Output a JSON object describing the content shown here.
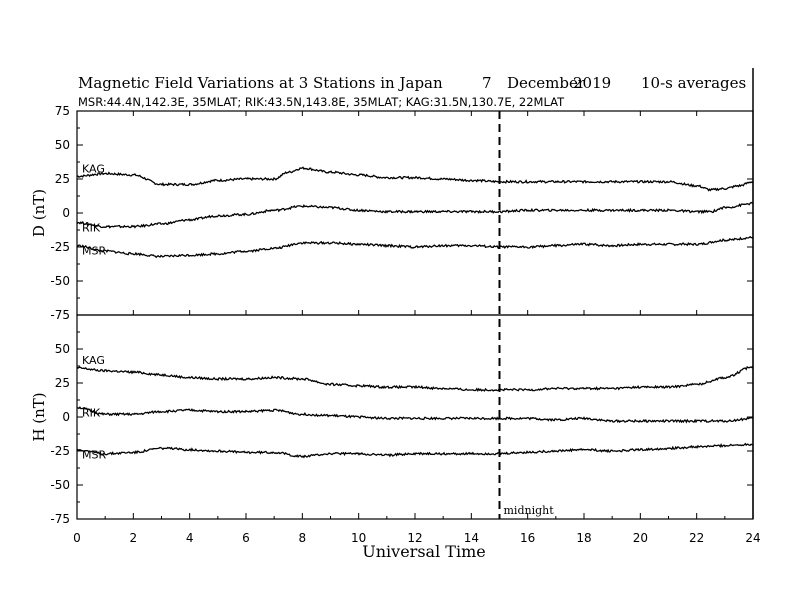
{
  "chart_data": {
    "type": "line",
    "title": "Magnetic Field Variations at 3 Stations in Japan",
    "date_day": "7",
    "date_month": "December",
    "date_year": "2019",
    "averaging": "10-s averages",
    "station_info": "MSR:44.4N,142.3E, 35MLAT;  RIK:43.5N,143.8E, 35MLAT;  KAG:31.5N,130.7E, 22MLAT",
    "xlabel": "Universal Time",
    "xlim": [
      0,
      24
    ],
    "xticks": [
      0,
      2,
      4,
      6,
      8,
      10,
      12,
      14,
      16,
      18,
      20,
      22,
      24
    ],
    "midnight_label": "midnight",
    "midnight_ut": 15,
    "panels": [
      {
        "ylabel": "D (nT)",
        "ylim": [
          -75,
          75
        ],
        "yticks": [
          75,
          50,
          25,
          0,
          -25,
          -50,
          -75
        ],
        "series": [
          {
            "name": "KAG",
            "x": [
              0,
              1,
              2,
              3,
              4,
              5,
              6,
              7,
              7.5,
              8,
              9,
              10,
              11,
              12,
              13,
              14,
              15,
              16,
              17,
              18,
              19,
              20,
              21,
              22,
              22.5,
              23,
              23.5,
              24
            ],
            "y": [
              27,
              29,
              28,
              21,
              21,
              24,
              25,
              25,
              30,
              33,
              30,
              28,
              26,
              26,
              25,
              24,
              23,
              23,
              23,
              23,
              23,
              23,
              23,
              20,
              17,
              18,
              20,
              23
            ]
          },
          {
            "name": "RIK",
            "x": [
              0,
              1,
              2,
              3,
              4,
              5,
              6,
              7,
              8,
              9,
              10,
              11,
              12,
              13,
              14,
              15,
              16,
              17,
              18,
              19,
              20,
              21,
              22,
              22.5,
              23,
              24
            ],
            "y": [
              -7,
              -10,
              -10,
              -8,
              -5,
              -2,
              -1,
              2,
              5,
              4,
              2,
              1,
              1,
              1,
              1,
              1,
              2,
              2,
              2,
              2,
              2,
              2,
              1,
              1,
              4,
              7
            ]
          },
          {
            "name": "MSR",
            "x": [
              0,
              1,
              2,
              3,
              4,
              5,
              6,
              7,
              8,
              9,
              10,
              11,
              12,
              13,
              14,
              15,
              16,
              17,
              18,
              19,
              20,
              21,
              22,
              23,
              24
            ],
            "y": [
              -24,
              -28,
              -30,
              -32,
              -31,
              -30,
              -28,
              -26,
              -22,
              -22,
              -23,
              -24,
              -25,
              -24,
              -24,
              -25,
              -25,
              -24,
              -23,
              -24,
              -23,
              -23,
              -23,
              -20,
              -18
            ]
          }
        ]
      },
      {
        "ylabel": "H (nT)",
        "ylim": [
          -75,
          75
        ],
        "yticks": [
          75,
          50,
          25,
          0,
          -25,
          -50,
          -75
        ],
        "series": [
          {
            "name": "KAG",
            "x": [
              0,
              1,
              2,
              3,
              4,
              5,
              6,
              7,
              8,
              9,
              10,
              11,
              12,
              13,
              14,
              15,
              16,
              17,
              18,
              19,
              20,
              21,
              22,
              23,
              24
            ],
            "y": [
              36,
              34,
              33,
              31,
              29,
              28,
              28,
              29,
              28,
              24,
              23,
              22,
              22,
              21,
              20,
              20,
              20,
              21,
              21,
              21,
              22,
              22,
              24,
              29,
              37
            ]
          },
          {
            "name": "RIK",
            "x": [
              0,
              1,
              2,
              3,
              4,
              5,
              6,
              7,
              8,
              9,
              10,
              11,
              12,
              13,
              14,
              15,
              16,
              17,
              18,
              19,
              20,
              21,
              22,
              23,
              24
            ],
            "y": [
              7,
              2,
              2,
              4,
              5,
              4,
              4,
              5,
              2,
              1,
              0,
              -1,
              -1,
              -1,
              -1,
              -1,
              -1,
              -2,
              -1,
              -3,
              -3,
              -3,
              -3,
              -3,
              -1
            ]
          },
          {
            "name": "MSR",
            "x": [
              0,
              1,
              2,
              3,
              4,
              5,
              6,
              7,
              8,
              9,
              10,
              11,
              12,
              13,
              14,
              15,
              16,
              17,
              18,
              19,
              20,
              21,
              22,
              23,
              24
            ],
            "y": [
              -24,
              -27,
              -26,
              -23,
              -24,
              -25,
              -26,
              -26,
              -29,
              -27,
              -27,
              -28,
              -27,
              -27,
              -27,
              -27,
              -26,
              -25,
              -24,
              -25,
              -24,
              -23,
              -22,
              -21,
              -20
            ]
          }
        ]
      }
    ]
  }
}
